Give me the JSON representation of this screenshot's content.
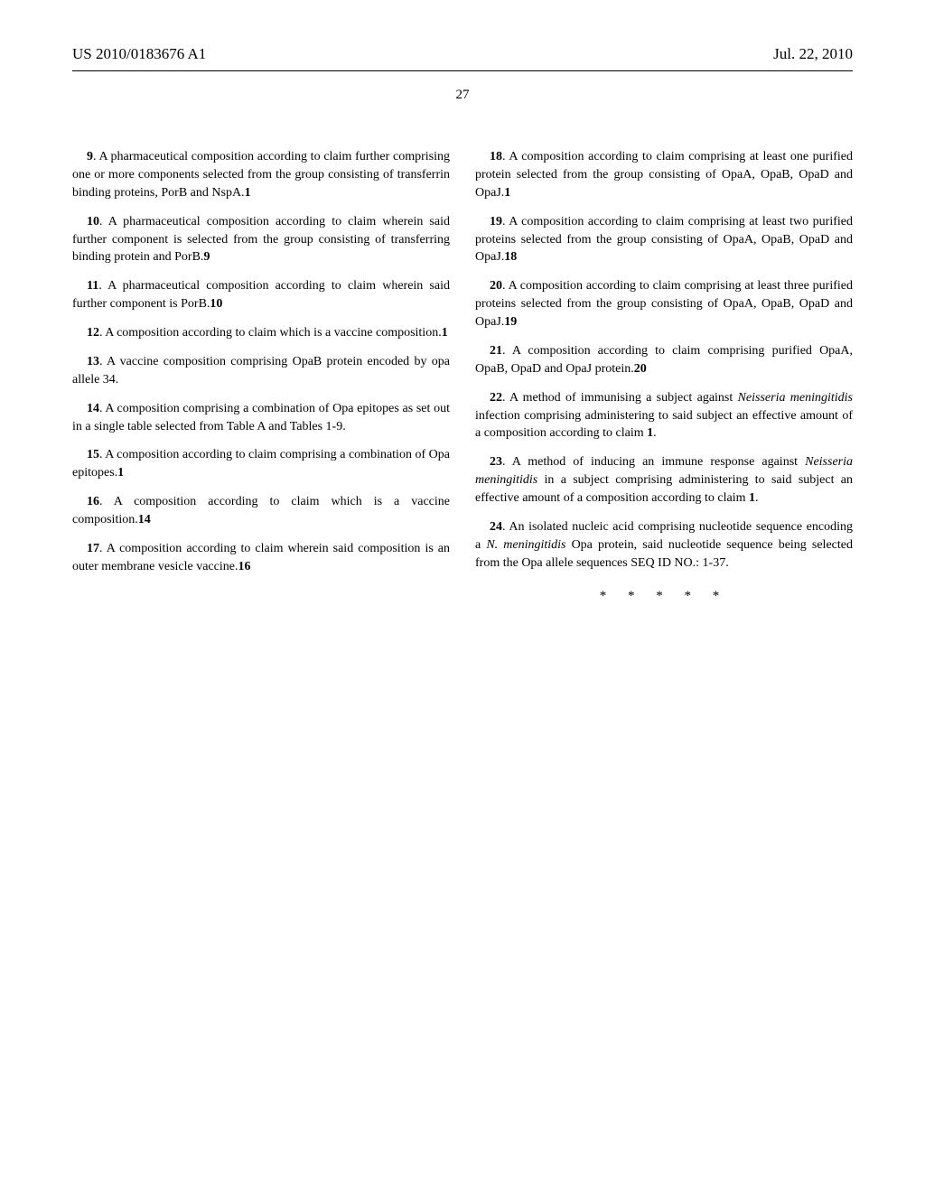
{
  "header": {
    "pub_number": "US 2010/0183676 A1",
    "pub_date": "Jul. 22, 2010"
  },
  "page_number": "27",
  "claims_left": [
    {
      "number": "9",
      "text": ". A pharmaceutical composition according to claim ",
      "ref": "1",
      "text2": " further comprising one or more components selected from the group consisting of transferrin binding proteins, PorB and NspA."
    },
    {
      "number": "10",
      "text": ". A pharmaceutical composition according to claim ",
      "ref": "9",
      "text2": " wherein said further component is selected from the group consisting of transferring binding protein and PorB."
    },
    {
      "number": "11",
      "text": ". A pharmaceutical composition according to claim ",
      "ref": "10",
      "text2": " wherein said further component is PorB."
    },
    {
      "number": "12",
      "text": ". A composition according to claim ",
      "ref": "1",
      "text2": " which is a vaccine composition."
    },
    {
      "number": "13",
      "text": ". A vaccine composition comprising OpaB protein encoded by opa allele 34.",
      "ref": "",
      "text2": ""
    },
    {
      "number": "14",
      "text": ". A composition comprising a combination of Opa epitopes as set out in a single table selected from Table A and Tables 1-9.",
      "ref": "",
      "text2": ""
    },
    {
      "number": "15",
      "text": ". A composition according to claim ",
      "ref": "1",
      "text2": " comprising a combination of Opa epitopes."
    },
    {
      "number": "16",
      "text": ". A composition according to claim ",
      "ref": "14",
      "text2": " which is a vaccine composition."
    },
    {
      "number": "17",
      "text": ". A composition according to claim ",
      "ref": "16",
      "text2": " wherein said composition is an outer membrane vesicle vaccine."
    }
  ],
  "claims_right": [
    {
      "number": "18",
      "text": ". A composition according to claim ",
      "ref": "1",
      "text2": " comprising at least one purified protein selected from the group consisting of OpaA, OpaB, OpaD and OpaJ."
    },
    {
      "number": "19",
      "text": ". A composition according to claim ",
      "ref": "18",
      "text2": " comprising at least two purified proteins selected from the group consisting of OpaA, OpaB, OpaD and OpaJ."
    },
    {
      "number": "20",
      "text": ". A composition according to claim ",
      "ref": "19",
      "text2": " comprising at least three purified proteins selected from the group consisting of OpaA, OpaB, OpaD and OpaJ."
    },
    {
      "number": "21",
      "text": ". A composition according to claim ",
      "ref": "20",
      "text2": " comprising purified OpaA, OpaB, OpaD and OpaJ protein."
    },
    {
      "number": "22",
      "text": ". A method of immunising a subject against ",
      "italic": "Neisseria meningitidis",
      "text2": " infection comprising administering to said subject an effective amount of a composition according to claim ",
      "ref": "1",
      "text3": "."
    },
    {
      "number": "23",
      "text": ". A method of inducing an immune response against ",
      "italic": "Neisseria meningitidis",
      "text2": " in a subject comprising administering to said subject an effective amount of a composition according to claim ",
      "ref": "1",
      "text3": "."
    },
    {
      "number": "24",
      "text": ". An isolated nucleic acid comprising nucleotide sequence encoding a ",
      "italic": "N. meningitidis",
      "text2": " Opa protein, said nucleotide sequence being selected from the Opa allele sequences SEQ ID NO.: 1-37.",
      "ref": "",
      "text3": ""
    }
  ],
  "end_marks": "* * * * *"
}
